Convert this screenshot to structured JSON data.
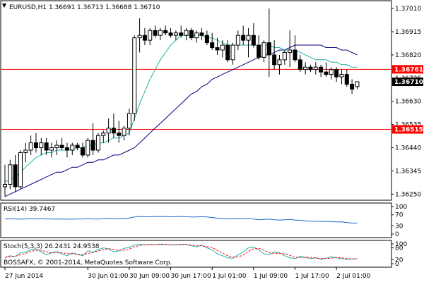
{
  "chart_data": [
    {
      "type": "candlestick",
      "title": "EURUSD,H1  1.36691 1.36713 1.36688 1.36710",
      "symbol": "EURUSD",
      "timeframe": "H1",
      "ohlc_header": [
        1.36691,
        1.36713,
        1.36688,
        1.3671
      ],
      "ylim": [
        1.36225,
        1.37042
      ],
      "y_ticks": [
        "1.37010",
        "1.36915",
        "1.36820",
        "1.36725",
        "1.36630",
        "1.36535",
        "1.36440",
        "1.36345",
        "1.36250"
      ],
      "y_tick_values": [
        1.3701,
        1.36915,
        1.3682,
        1.36725,
        1.3663,
        1.36535,
        1.3644,
        1.36345,
        1.3625
      ],
      "x_ticks": [
        "27 Jun 2014",
        "30 Jun 01:00",
        "30 Jun 09:00",
        "30 Jun 17:00",
        "1 Jul 01:00",
        "1 Jul 09:00",
        "1 Jul 17:00",
        "2 Jul 01:00"
      ],
      "x_tick_bar_index": [
        0,
        16,
        24,
        32,
        40,
        48,
        56,
        64
      ],
      "horizontal_levels": [
        {
          "value": 1.36761,
          "label": "1.36761",
          "color": "#ff0000"
        },
        {
          "value": 1.36515,
          "label": "1.36515",
          "color": "#ff0000"
        }
      ],
      "current_price": {
        "value": 1.3671,
        "label": "1.36710"
      },
      "candles": [
        [
          1.3628,
          1.3637,
          1.3624,
          1.3629
        ],
        [
          1.3629,
          1.3639,
          1.3627,
          1.3637
        ],
        [
          1.3637,
          1.3641,
          1.3626,
          1.3628
        ],
        [
          1.3628,
          1.3643,
          1.3627,
          1.3642
        ],
        [
          1.3642,
          1.3646,
          1.3638,
          1.3643
        ],
        [
          1.3643,
          1.3649,
          1.3641,
          1.3646
        ],
        [
          1.3646,
          1.365,
          1.3642,
          1.3644
        ],
        [
          1.3644,
          1.3648,
          1.3641,
          1.3646
        ],
        [
          1.3646,
          1.3648,
          1.3641,
          1.3643
        ],
        [
          1.3643,
          1.3646,
          1.364,
          1.3644
        ],
        [
          1.3644,
          1.3647,
          1.3641,
          1.3645
        ],
        [
          1.3645,
          1.3648,
          1.3643,
          1.3644
        ],
        [
          1.3644,
          1.3646,
          1.364,
          1.3643
        ],
        [
          1.3643,
          1.3646,
          1.3641,
          1.3645
        ],
        [
          1.3645,
          1.3646,
          1.3643,
          1.3644
        ],
        [
          1.3644,
          1.3646,
          1.364,
          1.3641
        ],
        [
          1.3641,
          1.3648,
          1.364,
          1.3647
        ],
        [
          1.3647,
          1.3654,
          1.3641,
          1.3643
        ],
        [
          1.3643,
          1.365,
          1.3642,
          1.3649
        ],
        [
          1.3649,
          1.3651,
          1.3646,
          1.365
        ],
        [
          1.365,
          1.3656,
          1.3646,
          1.3652
        ],
        [
          1.3652,
          1.3658,
          1.3648,
          1.365
        ],
        [
          1.365,
          1.3655,
          1.3646,
          1.3649
        ],
        [
          1.3649,
          1.3653,
          1.3647,
          1.3652
        ],
        [
          1.3652,
          1.366,
          1.3649,
          1.3658
        ],
        [
          1.3658,
          1.369,
          1.3655,
          1.3689
        ],
        [
          1.3689,
          1.3697,
          1.3683,
          1.369
        ],
        [
          1.369,
          1.3693,
          1.3686,
          1.3688
        ],
        [
          1.3688,
          1.3693,
          1.3686,
          1.3692
        ],
        [
          1.3692,
          1.3694,
          1.3689,
          1.369
        ],
        [
          1.369,
          1.3693,
          1.3688,
          1.3692
        ],
        [
          1.3692,
          1.3694,
          1.369,
          1.3691
        ],
        [
          1.3691,
          1.3693,
          1.3689,
          1.369
        ],
        [
          1.369,
          1.3692,
          1.3688,
          1.3691
        ],
        [
          1.3691,
          1.3694,
          1.3689,
          1.369
        ],
        [
          1.369,
          1.3693,
          1.3688,
          1.3692
        ],
        [
          1.3692,
          1.3693,
          1.3688,
          1.3689
        ],
        [
          1.3689,
          1.3692,
          1.3687,
          1.3691
        ],
        [
          1.3691,
          1.3693,
          1.3688,
          1.369
        ],
        [
          1.369,
          1.3692,
          1.3686,
          1.3687
        ],
        [
          1.3687,
          1.3691,
          1.3684,
          1.3685
        ],
        [
          1.3685,
          1.3689,
          1.3682,
          1.3684
        ],
        [
          1.3684,
          1.3688,
          1.3681,
          1.3686
        ],
        [
          1.3686,
          1.3688,
          1.3679,
          1.368
        ],
        [
          1.368,
          1.3687,
          1.3678,
          1.3686
        ],
        [
          1.3686,
          1.3692,
          1.3684,
          1.369
        ],
        [
          1.369,
          1.3694,
          1.3686,
          1.3688
        ],
        [
          1.3688,
          1.3693,
          1.3681,
          1.369
        ],
        [
          1.369,
          1.3695,
          1.3685,
          1.3686
        ],
        [
          1.3686,
          1.369,
          1.368,
          1.3681
        ],
        [
          1.3681,
          1.3688,
          1.3679,
          1.3687
        ],
        [
          1.3687,
          1.3701,
          1.3673,
          1.3682
        ],
        [
          1.3682,
          1.3688,
          1.3676,
          1.3678
        ],
        [
          1.3678,
          1.3682,
          1.3674,
          1.368
        ],
        [
          1.368,
          1.3684,
          1.3678,
          1.3683
        ],
        [
          1.3683,
          1.3692,
          1.3677,
          1.3684
        ],
        [
          1.3684,
          1.369,
          1.3679,
          1.368
        ],
        [
          1.368,
          1.3682,
          1.3675,
          1.3676
        ],
        [
          1.3676,
          1.3679,
          1.3674,
          1.3677
        ],
        [
          1.3677,
          1.3678,
          1.3675,
          1.3676
        ],
        [
          1.3676,
          1.3679,
          1.3674,
          1.3677
        ],
        [
          1.3677,
          1.3678,
          1.3673,
          1.3675
        ],
        [
          1.3675,
          1.3679,
          1.3673,
          1.3674
        ],
        [
          1.3674,
          1.3677,
          1.3672,
          1.3676
        ],
        [
          1.3676,
          1.3677,
          1.3671,
          1.3673
        ],
        [
          1.3673,
          1.3676,
          1.367,
          1.3674
        ],
        [
          1.3674,
          1.3676,
          1.3669,
          1.367
        ],
        [
          1.367,
          1.3672,
          1.3666,
          1.3668
        ],
        [
          1.3669,
          1.3671,
          1.3668,
          1.3671
        ]
      ],
      "ma_fast": [
        1.363,
        1.3631,
        1.3632,
        1.3634,
        1.3636,
        1.3638,
        1.364,
        1.3641,
        1.3642,
        1.3642,
        1.3643,
        1.3643,
        1.3643,
        1.3643,
        1.3644,
        1.3644,
        1.3645,
        1.3645,
        1.3646,
        1.3646,
        1.3647,
        1.3648,
        1.3648,
        1.3649,
        1.365,
        1.3656,
        1.3662,
        1.3667,
        1.3672,
        1.3676,
        1.368,
        1.3683,
        1.3686,
        1.3688,
        1.369,
        1.369,
        1.369,
        1.369,
        1.369,
        1.3689,
        1.3689,
        1.3688,
        1.3687,
        1.3686,
        1.3686,
        1.3686,
        1.3686,
        1.3686,
        1.3686,
        1.3686,
        1.3686,
        1.3686,
        1.3685,
        1.3685,
        1.3684,
        1.3684,
        1.3684,
        1.3683,
        1.3682,
        1.3681,
        1.368,
        1.368,
        1.368,
        1.3679,
        1.3679,
        1.3678,
        1.3678,
        1.3677,
        1.3677
      ],
      "ma_slow": [
        1.3624,
        1.3625,
        1.3626,
        1.3627,
        1.3628,
        1.3629,
        1.363,
        1.3631,
        1.3632,
        1.3633,
        1.3634,
        1.3634,
        1.3635,
        1.3636,
        1.3636,
        1.3637,
        1.3638,
        1.3638,
        1.3639,
        1.3639,
        1.364,
        1.3641,
        1.3641,
        1.3642,
        1.3643,
        1.3644,
        1.3646,
        1.3648,
        1.365,
        1.3652,
        1.3654,
        1.3656,
        1.3658,
        1.366,
        1.3662,
        1.3664,
        1.3666,
        1.3667,
        1.3669,
        1.367,
        1.3672,
        1.3673,
        1.3674,
        1.3675,
        1.3676,
        1.3677,
        1.3678,
        1.3679,
        1.368,
        1.3681,
        1.3682,
        1.3682,
        1.3683,
        1.3684,
        1.3684,
        1.3685,
        1.3686,
        1.3686,
        1.3686,
        1.3686,
        1.3686,
        1.3686,
        1.3685,
        1.3685,
        1.3685,
        1.3684,
        1.3684,
        1.3683,
        1.3682
      ],
      "colors": {
        "ma_fast": "#20b2aa",
        "ma_slow": "#000080",
        "level": "#ff0000",
        "candle": "#000000"
      }
    },
    {
      "type": "line",
      "title": "RSI(14) 39.7467",
      "ylim": [
        0,
        100
      ],
      "y_ticks": [
        "100",
        "70",
        "30",
        "0"
      ],
      "y_tick_values": [
        100,
        70,
        30,
        0
      ],
      "series": [
        {
          "name": "RSI(14)",
          "color": "#1e63c8",
          "values": [
            55,
            56,
            55,
            54,
            55,
            56,
            55,
            56,
            55,
            55,
            54,
            55,
            54,
            54,
            55,
            55,
            56,
            55,
            55,
            56,
            57,
            56,
            56,
            57,
            58,
            62,
            64,
            63,
            63,
            64,
            63,
            64,
            63,
            63,
            64,
            63,
            62,
            62,
            63,
            62,
            60,
            58,
            57,
            55,
            56,
            57,
            56,
            57,
            55,
            52,
            53,
            54,
            52,
            51,
            52,
            53,
            51,
            50,
            48,
            47,
            47,
            46,
            46,
            45,
            44,
            44,
            42,
            40,
            40
          ]
        }
      ]
    },
    {
      "type": "line",
      "title": "Stoch(5,3,3) 26.2431 24.9538",
      "ylim": [
        0,
        100
      ],
      "y_ticks": [
        "100",
        "80",
        "20",
        "0"
      ],
      "y_tick_values": [
        100,
        80,
        20,
        0
      ],
      "series": [
        {
          "name": "Stoch %K",
          "color": "#20b2aa",
          "values": [
            30,
            40,
            35,
            55,
            60,
            70,
            75,
            60,
            45,
            55,
            62,
            50,
            40,
            55,
            48,
            40,
            65,
            58,
            72,
            80,
            75,
            60,
            65,
            78,
            82,
            95,
            98,
            95,
            98,
            96,
            99,
            97,
            95,
            96,
            98,
            97,
            90,
            85,
            95,
            80,
            70,
            50,
            40,
            30,
            28,
            45,
            60,
            80,
            85,
            70,
            50,
            45,
            60,
            55,
            40,
            30,
            25,
            38,
            32,
            25,
            30,
            22,
            28,
            35,
            30,
            25,
            22,
            24,
            26
          ]
        },
        {
          "name": "Stoch %D",
          "color": "#ff0000",
          "values": [
            32,
            36,
            38,
            45,
            52,
            62,
            68,
            68,
            60,
            55,
            55,
            55,
            51,
            50,
            48,
            46,
            52,
            56,
            65,
            70,
            76,
            72,
            67,
            68,
            74,
            85,
            92,
            96,
            97,
            96,
            97,
            97,
            96,
            95,
            96,
            97,
            95,
            91,
            90,
            86,
            82,
            67,
            53,
            40,
            33,
            34,
            44,
            62,
            75,
            78,
            68,
            55,
            52,
            52,
            50,
            42,
            32,
            31,
            32,
            32,
            29,
            26,
            26,
            28,
            31,
            30,
            26,
            24,
            25
          ]
        }
      ]
    }
  ],
  "copyright": "BOSSAFX, © 2001-2014, MetaQuotes Software Corp."
}
